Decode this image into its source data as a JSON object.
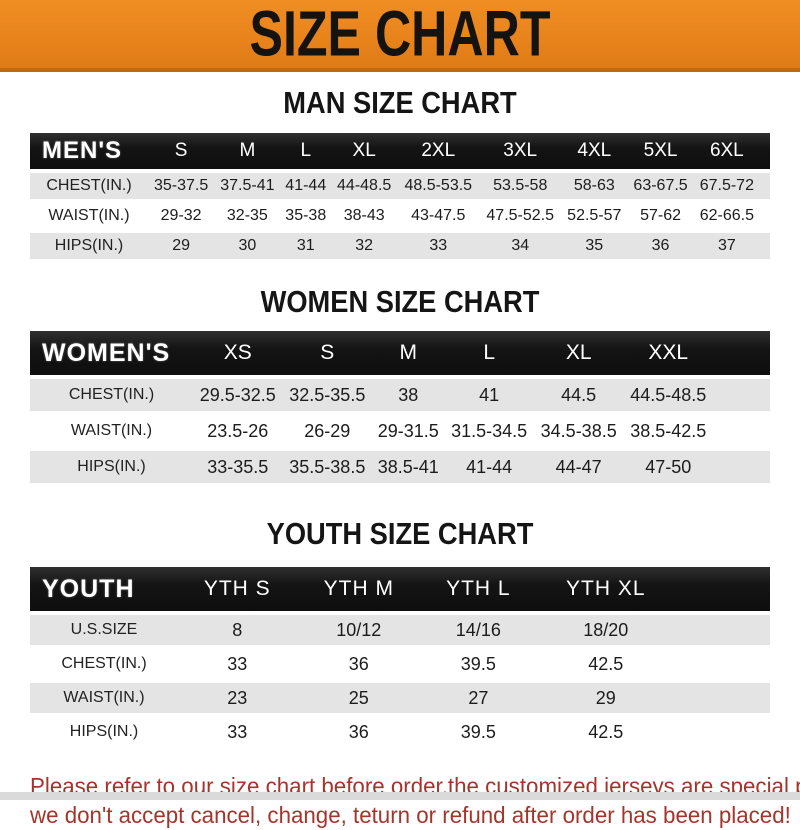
{
  "banner": {
    "title": "SIZE CHART"
  },
  "colors": {
    "banner_orange": "#e8831c",
    "header_bar_black": "#141414",
    "row_gray": "#e4e4e4",
    "note_red": "#a5352c"
  },
  "men": {
    "section_title": "MAN SIZE CHART",
    "label": "MEN'S",
    "sizes": [
      "S",
      "M",
      "L",
      "XL",
      "2XL",
      "3XL",
      "4XL",
      "5XL",
      "6XL"
    ],
    "rows": [
      {
        "label": "CHEST(IN.)",
        "values": [
          "35-37.5",
          "37.5-41",
          "41-44",
          "44-48.5",
          "48.5-53.5",
          "53.5-58",
          "58-63",
          "63-67.5",
          "67.5-72"
        ]
      },
      {
        "label": "WAIST(IN.)",
        "values": [
          "29-32",
          "32-35",
          "35-38",
          "38-43",
          "43-47.5",
          "47.5-52.5",
          "52.5-57",
          "57-62",
          "62-66.5"
        ]
      },
      {
        "label": "HIPS(IN.)",
        "values": [
          "29",
          "30",
          "31",
          "32",
          "33",
          "34",
          "35",
          "36",
          "37"
        ]
      }
    ]
  },
  "women": {
    "section_title": "WOMEN SIZE CHART",
    "label": "WOMEN'S",
    "sizes": [
      "XS",
      "S",
      "M",
      "L",
      "XL",
      "XXL"
    ],
    "rows": [
      {
        "label": "CHEST(IN.)",
        "values": [
          "29.5-32.5",
          "32.5-35.5",
          "38",
          "41",
          "44.5",
          "44.5-48.5"
        ]
      },
      {
        "label": "WAIST(IN.)",
        "values": [
          "23.5-26",
          "26-29",
          "29-31.5",
          "31.5-34.5",
          "34.5-38.5",
          "38.5-42.5"
        ]
      },
      {
        "label": "HIPS(IN.)",
        "values": [
          "33-35.5",
          "35.5-38.5",
          "38.5-41",
          "41-44",
          "44-47",
          "47-50"
        ]
      }
    ]
  },
  "youth": {
    "section_title": "YOUTH SIZE CHART",
    "label": "YOUTH",
    "sizes": [
      "YTH S",
      "YTH M",
      "YTH L",
      "YTH XL"
    ],
    "rows": [
      {
        "label": "U.S.SIZE",
        "values": [
          "8",
          "10/12",
          "14/16",
          "18/20"
        ]
      },
      {
        "label": "CHEST(IN.)",
        "values": [
          "33",
          "36",
          "39.5",
          "42.5"
        ]
      },
      {
        "label": "WAIST(IN.)",
        "values": [
          "23",
          "25",
          "27",
          "29"
        ]
      },
      {
        "label": "HIPS(IN.)",
        "values": [
          "33",
          "36",
          "39.5",
          "42.5"
        ]
      }
    ]
  },
  "note": {
    "line1": "Please refer to our size chart before order,the customized jerseys are special products,",
    "line2": "we don't accept cancel, change, teturn or refund after order has been placed!"
  }
}
